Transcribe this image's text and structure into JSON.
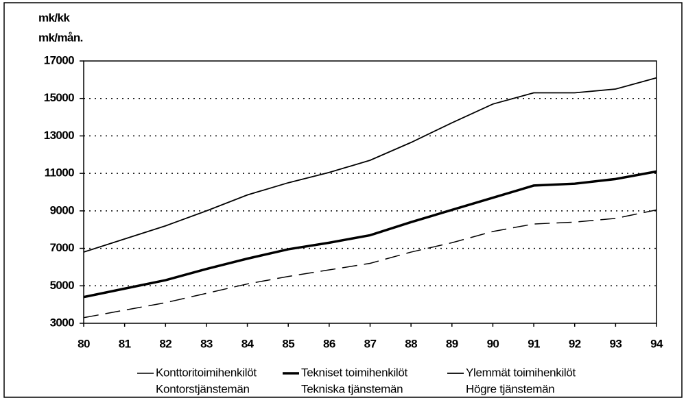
{
  "chart_data": {
    "type": "line",
    "y_units": [
      "mk/kk",
      "mk/mån."
    ],
    "categories": [
      "80",
      "81",
      "82",
      "83",
      "84",
      "85",
      "86",
      "87",
      "88",
      "89",
      "90",
      "91",
      "92",
      "93",
      "94"
    ],
    "series": [
      {
        "name": "Konttoritoimihenkilöt",
        "name2": "Kontorstjänstemän",
        "color": "#000000",
        "width": 1.5,
        "dash": true,
        "values": [
          3300,
          3700,
          4100,
          4600,
          5100,
          5500,
          5850,
          6200,
          6800,
          7300,
          7900,
          8300,
          8400,
          8600,
          9050
        ]
      },
      {
        "name": "Tekniset toimihenkilöt",
        "name2": "Tekniska tjänstemän",
        "color": "#000000",
        "width": 3.5,
        "dash": false,
        "values": [
          4400,
          4850,
          5300,
          5900,
          6450,
          6950,
          7300,
          7700,
          8400,
          9050,
          9700,
          10350,
          10450,
          10700,
          11100
        ]
      },
      {
        "name": "Ylemmät toimihenkilöt",
        "name2": "Högre tjänstemän",
        "color": "#000000",
        "width": 1.8,
        "dash": false,
        "values": [
          6800,
          7500,
          8200,
          9000,
          9850,
          10500,
          11050,
          11700,
          12650,
          13700,
          14700,
          15300,
          15300,
          15500,
          16100
        ]
      }
    ],
    "ylim": [
      3000,
      17000
    ],
    "yticks": [
      3000,
      5000,
      7000,
      9000,
      11000,
      13000,
      15000,
      17000
    ],
    "grid": true
  }
}
